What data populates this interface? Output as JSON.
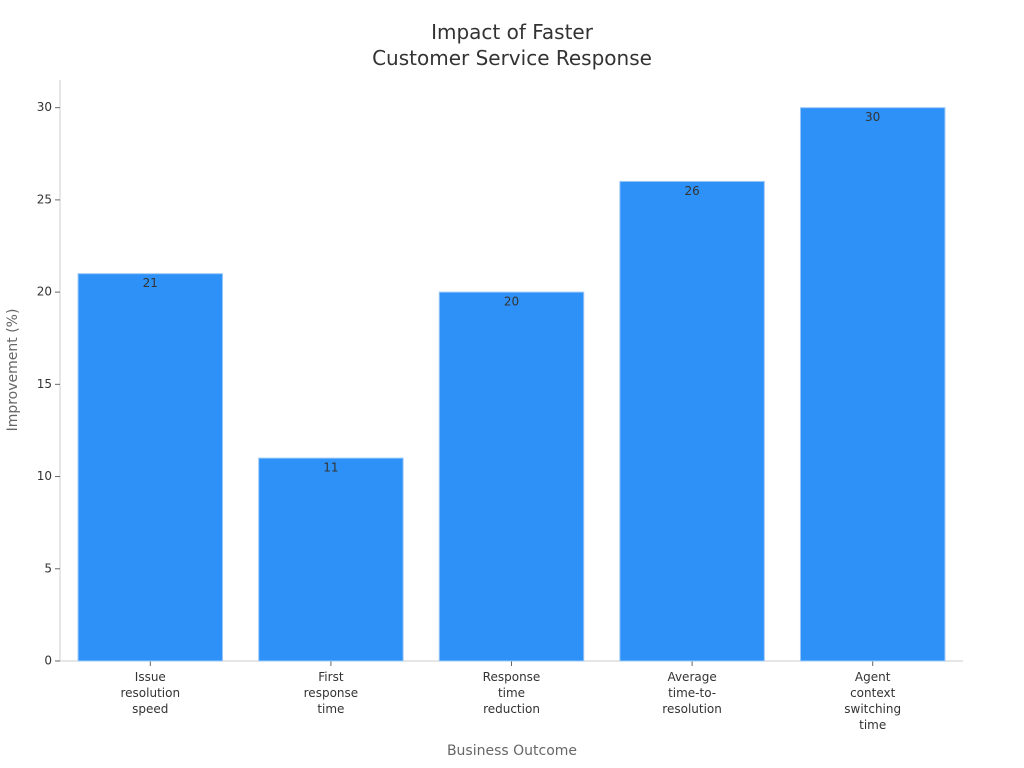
{
  "chart_data": {
    "type": "bar",
    "title": "Impact of Faster\nCustomer Service Response",
    "x_label": "Business Outcome",
    "y_label": "Improvement (%)",
    "categories": [
      "Issue\nresolution\nspeed",
      "First\nresponse\ntime",
      "Response\ntime\nreduction",
      "Average\ntime-to-\nresolution",
      "Agent\ncontext\nswitching\ntime"
    ],
    "values": [
      21,
      11,
      20,
      26,
      30
    ],
    "color": "#2e91f8",
    "ylim": [
      0,
      31.5
    ],
    "yticks": [
      0,
      5,
      10,
      15,
      20,
      25,
      30
    ],
    "grid": false
  }
}
